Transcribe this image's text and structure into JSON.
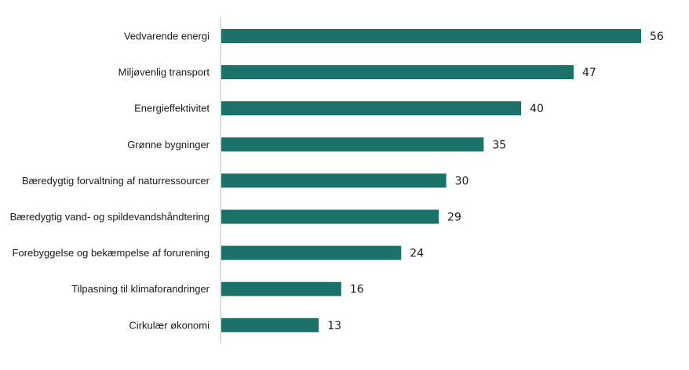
{
  "chart_data": {
    "type": "bar",
    "orientation": "horizontal",
    "categories": [
      "Vedvarende energi",
      "Miljøvenlig transport",
      "Energieffektivitet",
      "Grønne bygninger",
      "Bæredygtig forvaltning af naturressourcer",
      "Bæredygtig vand- og spildevandshåndtering",
      "Forebyggelse og bekæmpelse af forurening",
      "Tilpasning til klimaforandringer",
      "Cirkulær økonomi"
    ],
    "values": [
      56,
      47,
      40,
      35,
      30,
      29,
      24,
      16,
      13
    ],
    "data_labels": [
      "56",
      "47",
      "40",
      "35",
      "30",
      "29",
      "24",
      "16",
      "13"
    ],
    "xlim": [
      0,
      56
    ],
    "grid": false,
    "legend": "none",
    "bar_color": "#1b7268"
  }
}
